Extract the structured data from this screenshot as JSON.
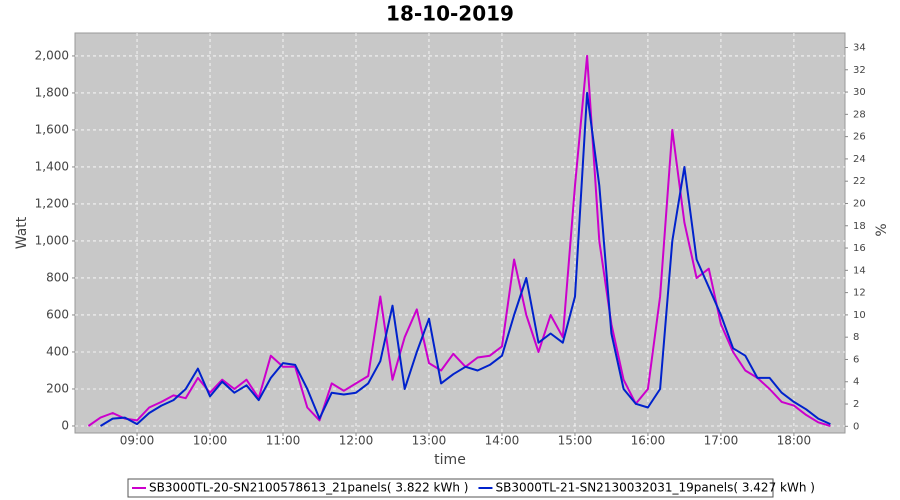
{
  "chart_data": {
    "type": "line",
    "title": "18-10-2019",
    "x_label": "time",
    "y_label": "Watt",
    "y2_label": "%",
    "x": [
      "08:20",
      "08:30",
      "08:40",
      "08:50",
      "09:00",
      "09:10",
      "09:20",
      "09:30",
      "09:40",
      "09:50",
      "10:00",
      "10:10",
      "10:20",
      "10:30",
      "10:40",
      "10:50",
      "11:00",
      "11:10",
      "11:20",
      "11:30",
      "11:40",
      "11:50",
      "12:00",
      "12:10",
      "12:20",
      "12:30",
      "12:40",
      "12:50",
      "13:00",
      "13:10",
      "13:20",
      "13:30",
      "13:40",
      "13:50",
      "14:00",
      "14:10",
      "14:20",
      "14:30",
      "14:40",
      "14:50",
      "15:00",
      "15:10",
      "15:20",
      "15:30",
      "15:40",
      "15:50",
      "16:00",
      "16:10",
      "16:20",
      "16:30",
      "16:40",
      "16:50",
      "17:00",
      "17:10",
      "17:20",
      "17:30",
      "17:40",
      "17:50",
      "18:00",
      "18:10",
      "18:20",
      "18:30"
    ],
    "xlim": [
      "08:09",
      "18:42"
    ],
    "xticks": [
      "09:00",
      "10:00",
      "11:00",
      "12:00",
      "13:00",
      "14:00",
      "15:00",
      "16:00",
      "17:00",
      "18:00"
    ],
    "ylim": [
      -38,
      2124
    ],
    "yticks": [
      0,
      200,
      400,
      600,
      800,
      {
        "value": 1000,
        "label": "1,000"
      },
      {
        "value": 1200,
        "label": "1,200"
      },
      {
        "value": 1400,
        "label": "1,400"
      },
      {
        "value": 1600,
        "label": "1,600"
      },
      {
        "value": 1800,
        "label": "1,800"
      },
      {
        "value": 2000,
        "label": "2,000"
      }
    ],
    "y2lim": [
      -0.6,
      35.3
    ],
    "y2ticks": [
      0,
      2,
      4,
      6,
      8,
      10,
      12,
      14,
      16,
      18,
      20,
      22,
      24,
      26,
      28,
      30,
      32,
      34
    ],
    "grid": true,
    "series": [
      {
        "name": "SB3000TL-20-SN2100578613_21panels( 3.822 kWh )",
        "color": "#cc00cc",
        "values": [
          0,
          45,
          70,
          40,
          30,
          100,
          130,
          165,
          150,
          260,
          180,
          250,
          200,
          250,
          150,
          380,
          320,
          320,
          100,
          30,
          230,
          190,
          230,
          270,
          700,
          250,
          480,
          630,
          340,
          300,
          390,
          320,
          370,
          380,
          430,
          900,
          600,
          400,
          600,
          480,
          1300,
          2000,
          1000,
          550,
          250,
          120,
          200,
          700,
          1600,
          1100,
          800,
          850,
          550,
          400,
          300,
          260,
          200,
          130,
          110,
          60,
          20,
          0
        ]
      },
      {
        "name": "SB3000TL-21-SN2130032031_19panels( 3.427 kWh )",
        "color": "#0022cc",
        "values": [
          null,
          0,
          40,
          45,
          10,
          70,
          110,
          140,
          200,
          310,
          160,
          240,
          180,
          220,
          140,
          260,
          340,
          330,
          200,
          40,
          180,
          170,
          180,
          230,
          350,
          650,
          200,
          400,
          580,
          230,
          280,
          320,
          300,
          330,
          380,
          600,
          800,
          450,
          500,
          450,
          700,
          1800,
          1300,
          500,
          200,
          120,
          100,
          200,
          1000,
          1400,
          900,
          750,
          600,
          420,
          380,
          260,
          260,
          180,
          130,
          90,
          40,
          10
        ]
      }
    ]
  }
}
